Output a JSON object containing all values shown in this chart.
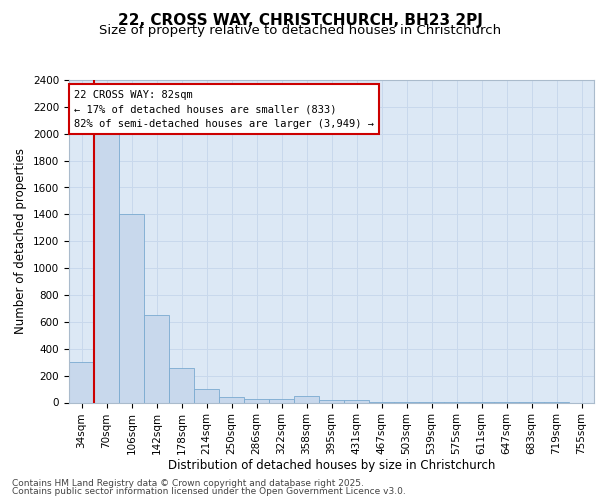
{
  "title_line1": "22, CROSS WAY, CHRISTCHURCH, BH23 2PJ",
  "title_line2": "Size of property relative to detached houses in Christchurch",
  "xlabel": "Distribution of detached houses by size in Christchurch",
  "ylabel": "Number of detached properties",
  "bin_labels": [
    "34sqm",
    "70sqm",
    "106sqm",
    "142sqm",
    "178sqm",
    "214sqm",
    "250sqm",
    "286sqm",
    "322sqm",
    "358sqm",
    "395sqm",
    "431sqm",
    "467sqm",
    "503sqm",
    "539sqm",
    "575sqm",
    "611sqm",
    "647sqm",
    "683sqm",
    "719sqm",
    "755sqm"
  ],
  "bar_values": [
    300,
    2000,
    1400,
    650,
    260,
    100,
    40,
    25,
    25,
    50,
    20,
    20,
    5,
    5,
    5,
    3,
    2,
    2,
    1,
    1,
    0
  ],
  "bar_color": "#c8d8ec",
  "bar_edge_color": "#7aaad0",
  "vline_bin_index": 1,
  "annotation_line1": "22 CROSS WAY: 82sqm",
  "annotation_line2": "← 17% of detached houses are smaller (833)",
  "annotation_line3": "82% of semi-detached houses are larger (3,949) →",
  "annotation_box_facecolor": "#ffffff",
  "annotation_box_edgecolor": "#cc0000",
  "vline_color": "#cc0000",
  "ylim": [
    0,
    2400
  ],
  "yticks": [
    0,
    200,
    400,
    600,
    800,
    1000,
    1200,
    1400,
    1600,
    1800,
    2000,
    2200,
    2400
  ],
  "grid_color": "#c8d8ec",
  "plot_bg_color": "#dce8f5",
  "fig_bg_color": "#ffffff",
  "footer_line1": "Contains HM Land Registry data © Crown copyright and database right 2025.",
  "footer_line2": "Contains public sector information licensed under the Open Government Licence v3.0.",
  "title_fontsize": 11,
  "subtitle_fontsize": 9.5,
  "axis_label_fontsize": 8.5,
  "tick_fontsize": 7.5,
  "annotation_fontsize": 7.5,
  "footer_fontsize": 6.5
}
